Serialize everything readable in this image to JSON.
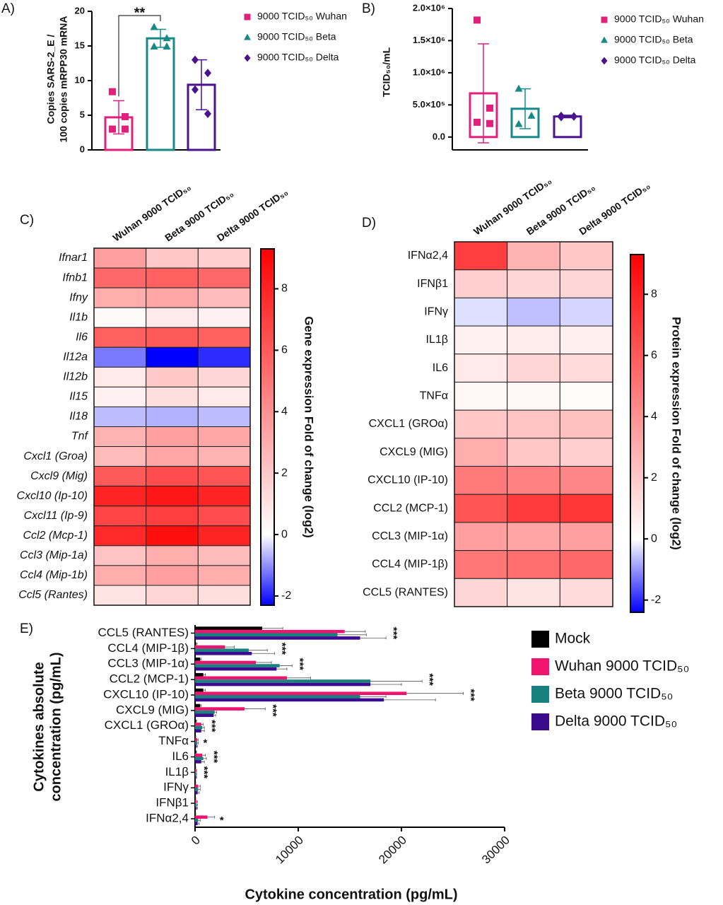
{
  "chart_data": [
    {
      "type": "bar",
      "panel": "A)",
      "ylabel": [
        "Copies SARS-2_E /",
        "100 copies mRPP30 mRNA"
      ],
      "ylim": [
        0,
        20
      ],
      "yticks": [
        0,
        5,
        10,
        15,
        20
      ],
      "legend": "right",
      "series": [
        {
          "name": "9000 TCID₅₀ Wuhan",
          "color": "#e0207a",
          "marker": "square",
          "value": 4.7,
          "error": 2.4,
          "points": [
            8.4,
            4.8,
            3.0,
            3.0
          ]
        },
        {
          "name": "9000 TCID₅₀ Beta",
          "color": "#178a88",
          "marker": "triangle",
          "value": 16.1,
          "error": 1.3,
          "points": [
            17.7,
            16.1,
            14.9,
            14.9
          ]
        },
        {
          "name": "9000 TCID₅₀ Delta",
          "color": "#4a1190",
          "marker": "diamond",
          "value": 9.4,
          "error": 3.6,
          "points": [
            13.0,
            11.1,
            8.7,
            5.2
          ]
        }
      ],
      "significance": [
        {
          "text": "**",
          "between": [
            0,
            1
          ]
        }
      ]
    },
    {
      "type": "bar",
      "panel": "B)",
      "ylabel": [
        "TCID₅₀/mL"
      ],
      "ylim": [
        -200000,
        2000000
      ],
      "yticks": [
        {
          "value": 0,
          "label": "0.0"
        },
        {
          "value": 500000,
          "label": "5.0×10⁵"
        },
        {
          "value": 1000000,
          "label": "1.0×10⁶"
        },
        {
          "value": 1500000,
          "label": "1.5×10⁶"
        },
        {
          "value": 2000000,
          "label": "2.0×10⁶"
        }
      ],
      "legend": "right",
      "series": [
        {
          "name": "9000 TCID₅₀ Wuhan",
          "color": "#e0207a",
          "marker": "square",
          "value": 680000,
          "error": 770000,
          "points": [
            1820000,
            450000,
            230000,
            210000
          ]
        },
        {
          "name": "9000 TCID₅₀ Beta",
          "color": "#178a88",
          "marker": "triangle",
          "value": 440000,
          "error": 310000,
          "points": [
            750000,
            330000,
            200000
          ]
        },
        {
          "name": "9000 TCID₅₀ Delta",
          "color": "#4a1190",
          "marker": "diamond",
          "value": 320000,
          "error": 20000,
          "points": [
            330000,
            320000,
            310000,
            320000
          ]
        }
      ]
    },
    {
      "type": "heatmap",
      "panel": "C)",
      "row_style": "italic",
      "columns": [
        "Wuhan 9000 TCID₅₀",
        "Beta 9000 TCID₅₀",
        "Delta 9000 TCID₅₀"
      ],
      "rows": [
        "Ifnar1",
        "Ifnb1",
        "Ifny",
        "Il1b",
        "Il6",
        "Il12a",
        "Il12b",
        "Il15",
        "Il18",
        "Tnf",
        "Cxcl1 (Groa)",
        "Cxcl9 (Mig)",
        "Cxcl10 (Ip-10)",
        "Cxcl11 (Ip-9)",
        "Ccl2 (Mcp-1)",
        "Ccl3 (Mip-1a)",
        "Ccl4 (Mip-1b)",
        "Ccl5 (Rantes)"
      ],
      "values": [
        [
          3.5,
          2.0,
          1.8
        ],
        [
          5.5,
          5.8,
          5.5
        ],
        [
          3.0,
          3.2,
          2.5
        ],
        [
          0.2,
          0.8,
          0.5
        ],
        [
          5.8,
          6.0,
          5.8
        ],
        [
          -1.2,
          -2.4,
          -1.9
        ],
        [
          0.8,
          2.0,
          1.5
        ],
        [
          0.5,
          1.2,
          0.8
        ],
        [
          -0.6,
          -0.7,
          -0.6
        ],
        [
          2.8,
          3.5,
          3.2
        ],
        [
          2.5,
          3.2,
          2.8
        ],
        [
          6.0,
          6.5,
          6.2
        ],
        [
          8.0,
          8.5,
          8.0
        ],
        [
          6.8,
          7.0,
          6.5
        ],
        [
          7.8,
          8.8,
          8.0
        ],
        [
          2.2,
          3.0,
          2.5
        ],
        [
          3.0,
          3.5,
          3.0
        ],
        [
          1.0,
          1.5,
          1.2
        ]
      ],
      "zlim": [
        -2.3,
        9.3
      ],
      "zticks": [
        -2,
        0,
        2,
        4,
        6,
        8
      ],
      "colormap": {
        "low": "#0000ff",
        "mid": "#ffffff",
        "high": "#ff0000"
      },
      "colorbar_label": "Gene expression Fold of change (log2)"
    },
    {
      "type": "heatmap",
      "panel": "D)",
      "row_style": "normal",
      "columns": [
        "Wuhan 9000 TCID₅₀",
        "Beta 9000 TCID₅₀",
        "Delta 9000 TCID₅₀"
      ],
      "rows": [
        "IFNα2,4",
        "IFNβ1",
        "IFNγ",
        "IL1β",
        "IL6",
        "TNFα",
        "CXCL1 (GROα)",
        "CXCL9 (MIG)",
        "CXCL10 (IP-10)",
        "CCL2 (MCP-1)",
        "CCL3 (MIP-1α)",
        "CCL4 (MIP-1β)",
        "CCL5 (RANTES)"
      ],
      "values": [
        [
          7.0,
          2.8,
          2.0
        ],
        [
          1.8,
          1.5,
          1.5
        ],
        [
          -0.3,
          -0.6,
          -0.4
        ],
        [
          0.5,
          0.7,
          0.6
        ],
        [
          0.8,
          1.5,
          1.3
        ],
        [
          0.3,
          0.3,
          0.1
        ],
        [
          2.0,
          2.2,
          2.3
        ],
        [
          3.0,
          2.0,
          1.8
        ],
        [
          4.8,
          4.6,
          4.4
        ],
        [
          6.2,
          7.2,
          7.3
        ],
        [
          3.5,
          3.3,
          3.5
        ],
        [
          5.0,
          5.3,
          5.5
        ],
        [
          1.5,
          1.0,
          1.3
        ]
      ],
      "zlim": [
        -2.4,
        9.3
      ],
      "zticks": [
        -2,
        0,
        2,
        4,
        6,
        8
      ],
      "colormap": {
        "low": "#0000ff",
        "mid": "#ffffff",
        "high": "#ff0000"
      },
      "colorbar_label": "Protein expression Fold of change (log2)"
    },
    {
      "type": "hbar",
      "panel": "E)",
      "xlabel": "Cytokine concentration (pg/mL)",
      "ylabel": [
        "Cytokines absolute",
        "concentration (pg/mL)"
      ],
      "xlim": [
        0,
        30000
      ],
      "xticks": [
        0,
        10000,
        20000,
        30000
      ],
      "legend": "right",
      "categories": [
        "CCL5 (RANTES)",
        "CCL4 (MIP-1β)",
        "CCL3 (MIP-1α)",
        "CCL2 (MCP-1)",
        "CXCL10 (IP-10)",
        "CXCL9 (MIG)",
        "CXCL1 (GROα)",
        "TNFα",
        "IL6",
        "IL1β",
        "IFNγ",
        "IFNβ1",
        "IFNα2,4"
      ],
      "series": [
        {
          "name": "Mock",
          "color": "#000000",
          "values": [
            6500,
            100,
            500,
            800,
            800,
            500,
            100,
            50,
            100,
            50,
            50,
            50,
            50
          ],
          "errors": [
            2000,
            100,
            100,
            200,
            200,
            100,
            50,
            20,
            50,
            20,
            20,
            20,
            20
          ]
        },
        {
          "name": "Wuhan 9000 TCID₅₀",
          "color": "#f0146e",
          "values": [
            14500,
            2900,
            5900,
            8900,
            20500,
            4800,
            600,
            200,
            700,
            100,
            300,
            150,
            1200
          ],
          "errors": [
            2000,
            900,
            1500,
            2300,
            5500,
            2000,
            200,
            100,
            300,
            50,
            200,
            100,
            700
          ]
        },
        {
          "name": "Beta 9000 TCID₅₀",
          "color": "#17817f",
          "values": [
            13800,
            5200,
            8200,
            17000,
            16000,
            1900,
            700,
            200,
            800,
            100,
            300,
            150,
            300
          ],
          "errors": [
            2800,
            1800,
            1200,
            5000,
            2500,
            200,
            200,
            100,
            300,
            50,
            200,
            100,
            200
          ]
        },
        {
          "name": "Delta 9000 TCID₅₀",
          "color": "#3c0a8c",
          "values": [
            16000,
            5500,
            7900,
            17000,
            18300,
            1800,
            600,
            150,
            600,
            100,
            250,
            150,
            250
          ],
          "errors": [
            2500,
            2200,
            1000,
            3000,
            5000,
            200,
            300,
            100,
            300,
            50,
            150,
            100,
            150
          ]
        }
      ],
      "significance": [
        "***",
        "***",
        "***",
        "***",
        "***",
        "***",
        "***",
        "*",
        "***",
        "***",
        null,
        null,
        "*"
      ]
    }
  ]
}
